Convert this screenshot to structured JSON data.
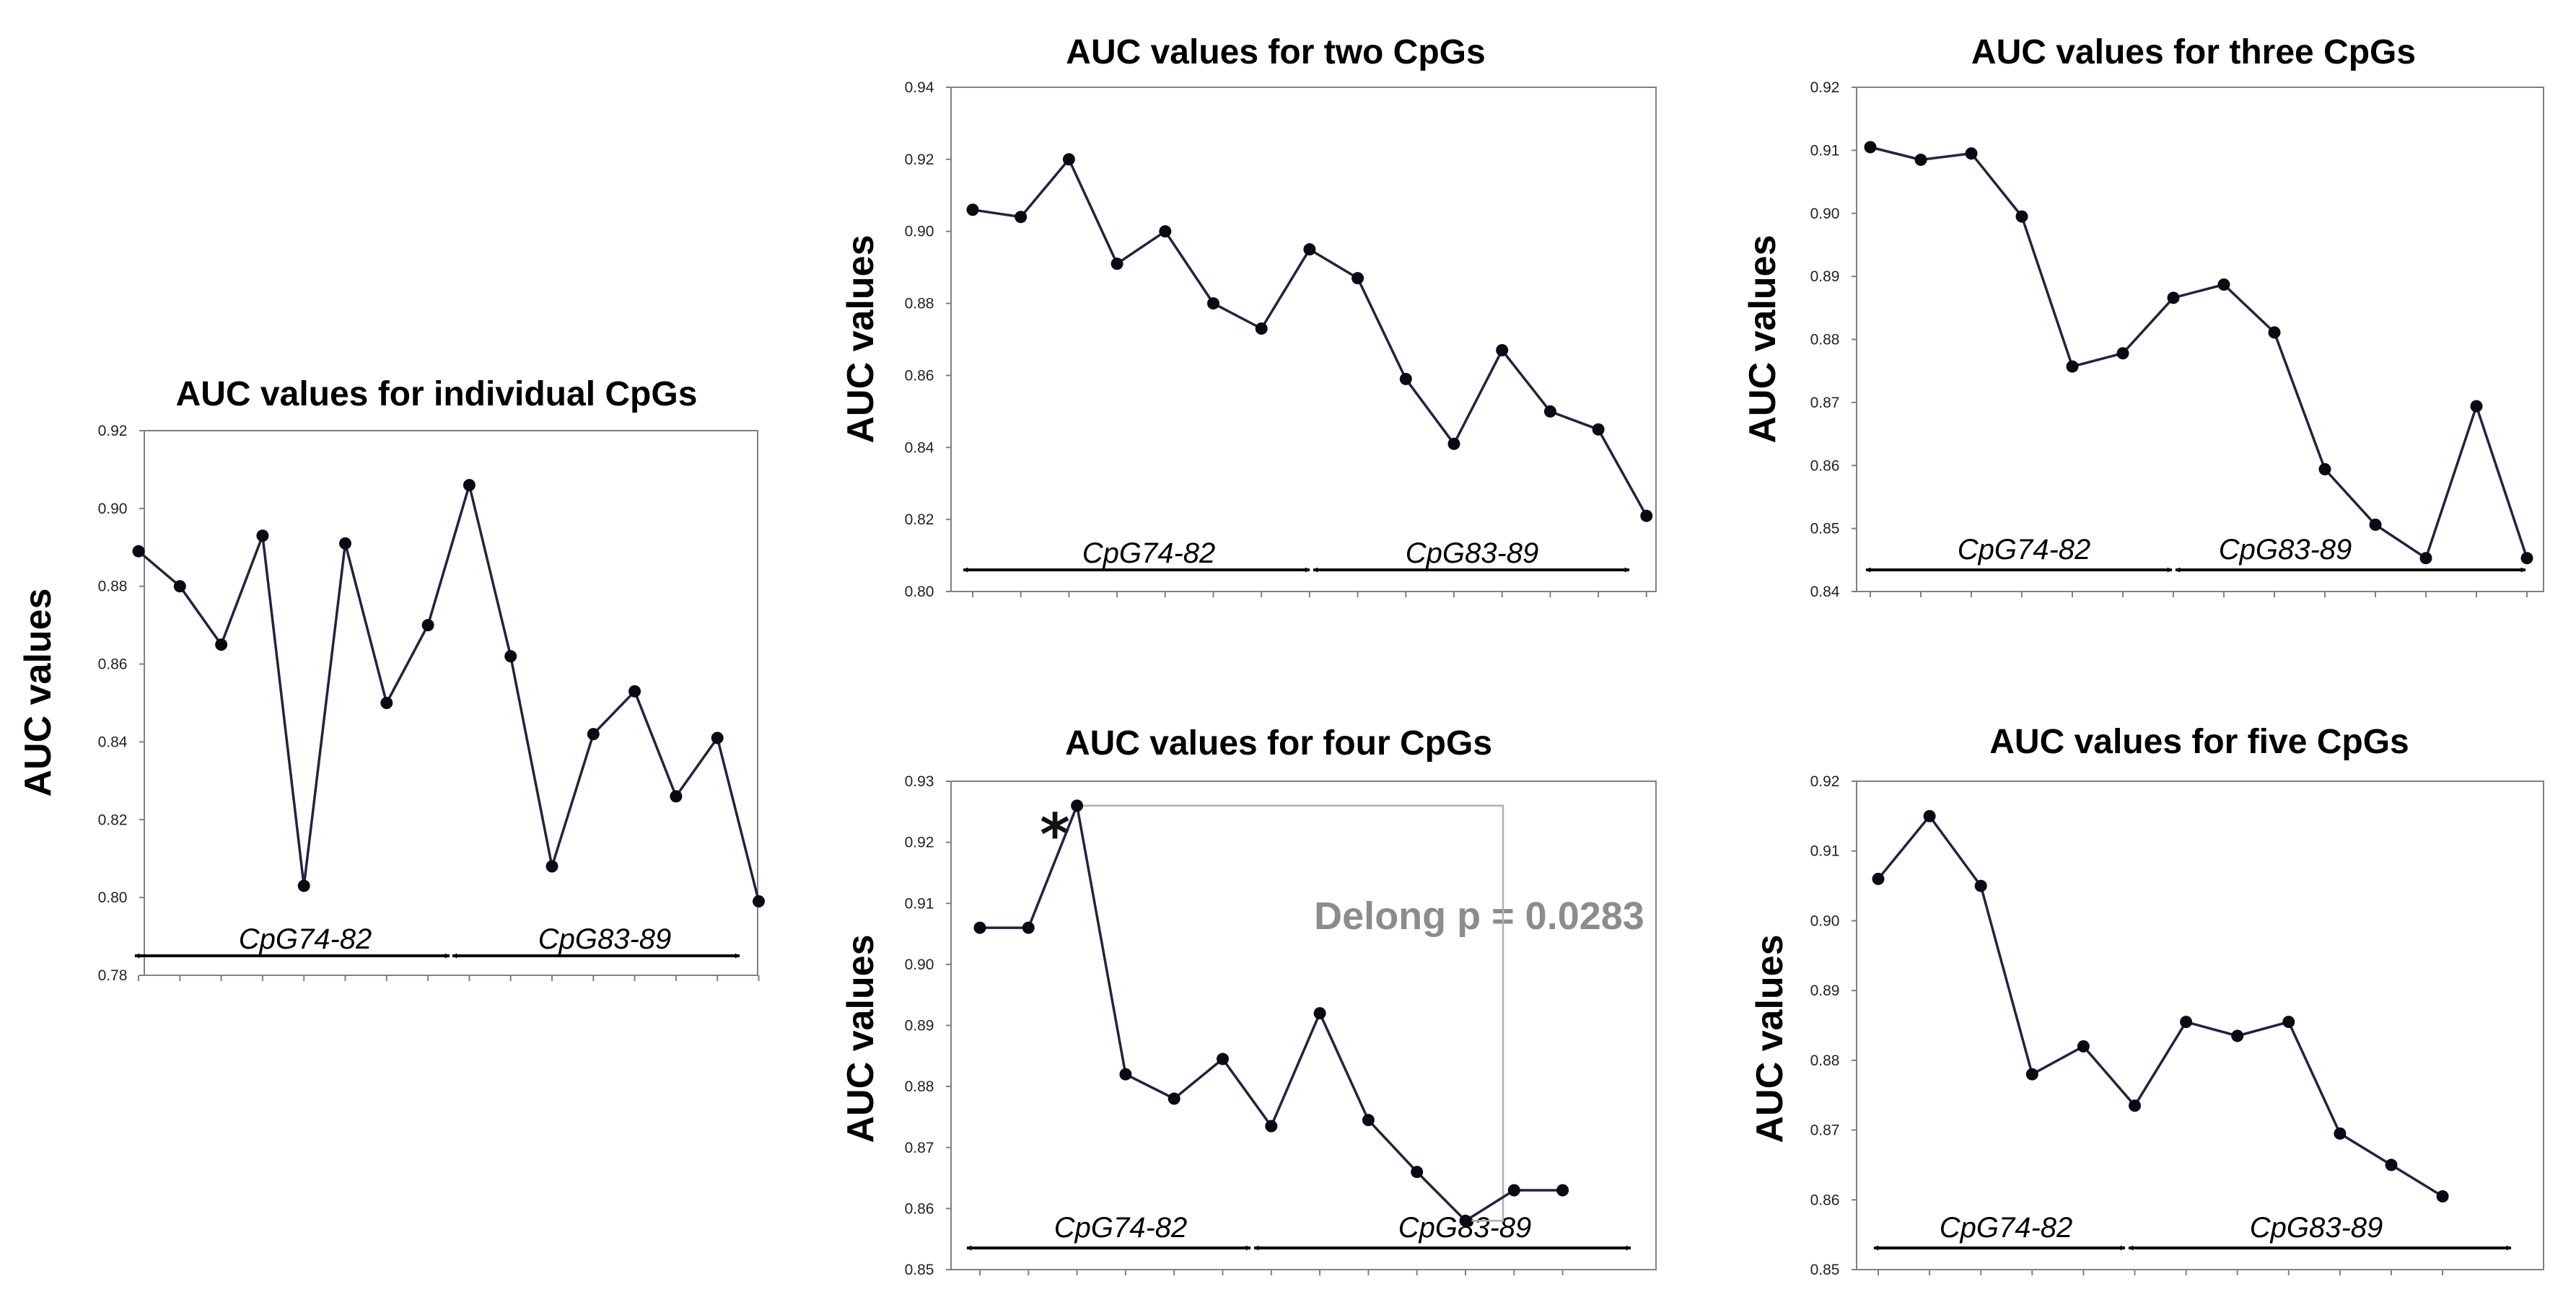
{
  "figure": {
    "accent_color": "#1f2440",
    "frame_color": "#808080"
  },
  "chart_data": [
    {
      "id": "individual",
      "type": "line",
      "title": "AUC values for individual CpGs",
      "ylabel": "AUC values",
      "ylim": [
        0.78,
        0.92
      ],
      "yticks": [
        "0.78",
        "0.80",
        "0.82",
        "0.84",
        "0.86",
        "0.88",
        "0.90",
        "0.92"
      ],
      "values": [
        0.889,
        0.88,
        0.865,
        0.893,
        0.803,
        0.891,
        0.85,
        0.87,
        0.906,
        0.862,
        0.808,
        0.842,
        0.853,
        0.826,
        0.841,
        0.799
      ],
      "groups": [
        {
          "label": "CpG74-82"
        },
        {
          "label": "CpG83-89"
        }
      ]
    },
    {
      "id": "two",
      "type": "line",
      "title": "AUC values for two CpGs",
      "ylabel": "AUC values",
      "ylim": [
        0.8,
        0.94
      ],
      "yticks": [
        "0.80",
        "0.82",
        "0.84",
        "0.86",
        "0.88",
        "0.90",
        "0.92",
        "0.94"
      ],
      "values": [
        0.906,
        0.904,
        0.92,
        0.891,
        0.9,
        0.88,
        0.873,
        0.895,
        0.887,
        0.859,
        0.841,
        0.867,
        0.85,
        0.845,
        0.821
      ],
      "groups": [
        {
          "label": "CpG74-82"
        },
        {
          "label": "CpG83-89"
        }
      ]
    },
    {
      "id": "three",
      "type": "line",
      "title": "AUC values for three CpGs",
      "ylabel": "AUC values",
      "ylim": [
        0.84,
        0.92
      ],
      "yticks": [
        "0.84",
        "0.85",
        "0.86",
        "0.87",
        "0.88",
        "0.89",
        "0.90",
        "0.91",
        "0.92"
      ],
      "values": [
        0.9105,
        0.9085,
        0.9095,
        0.8995,
        0.8757,
        0.8778,
        0.8866,
        0.8887,
        0.8811,
        0.8594,
        0.8506,
        0.8453,
        0.8694,
        0.8453
      ],
      "groups": [
        {
          "label": "CpG74-82"
        },
        {
          "label": "CpG83-89"
        }
      ]
    },
    {
      "id": "four",
      "type": "line",
      "title": "AUC values for four CpGs",
      "ylabel": "AUC values",
      "ylim": [
        0.85,
        0.93
      ],
      "yticks": [
        "0.85",
        "0.86",
        "0.87",
        "0.88",
        "0.89",
        "0.90",
        "0.91",
        "0.92",
        "0.93"
      ],
      "values": [
        0.906,
        0.906,
        0.926,
        0.882,
        0.878,
        0.8845,
        0.8735,
        0.892,
        0.8745,
        0.866,
        0.858,
        0.863,
        0.863
      ],
      "groups": [
        {
          "label": "CpG74-82"
        },
        {
          "label": "CpG83-89"
        }
      ],
      "annotation": {
        "text": "Delong  p = 0.0283",
        "marker": "*",
        "from_index": 2,
        "to_index": 10
      }
    },
    {
      "id": "five",
      "type": "line",
      "title": "AUC values for five CpGs",
      "ylabel": "AUC values",
      "ylim": [
        0.85,
        0.92
      ],
      "yticks": [
        "0.85",
        "0.86",
        "0.87",
        "0.88",
        "0.89",
        "0.90",
        "0.91",
        "0.92"
      ],
      "values": [
        0.906,
        0.915,
        0.905,
        0.878,
        0.882,
        0.8735,
        0.8855,
        0.8835,
        0.8855,
        0.8695,
        0.865,
        0.8605
      ],
      "groups": [
        {
          "label": "CpG74-82"
        },
        {
          "label": "CpG83-89"
        }
      ]
    }
  ]
}
